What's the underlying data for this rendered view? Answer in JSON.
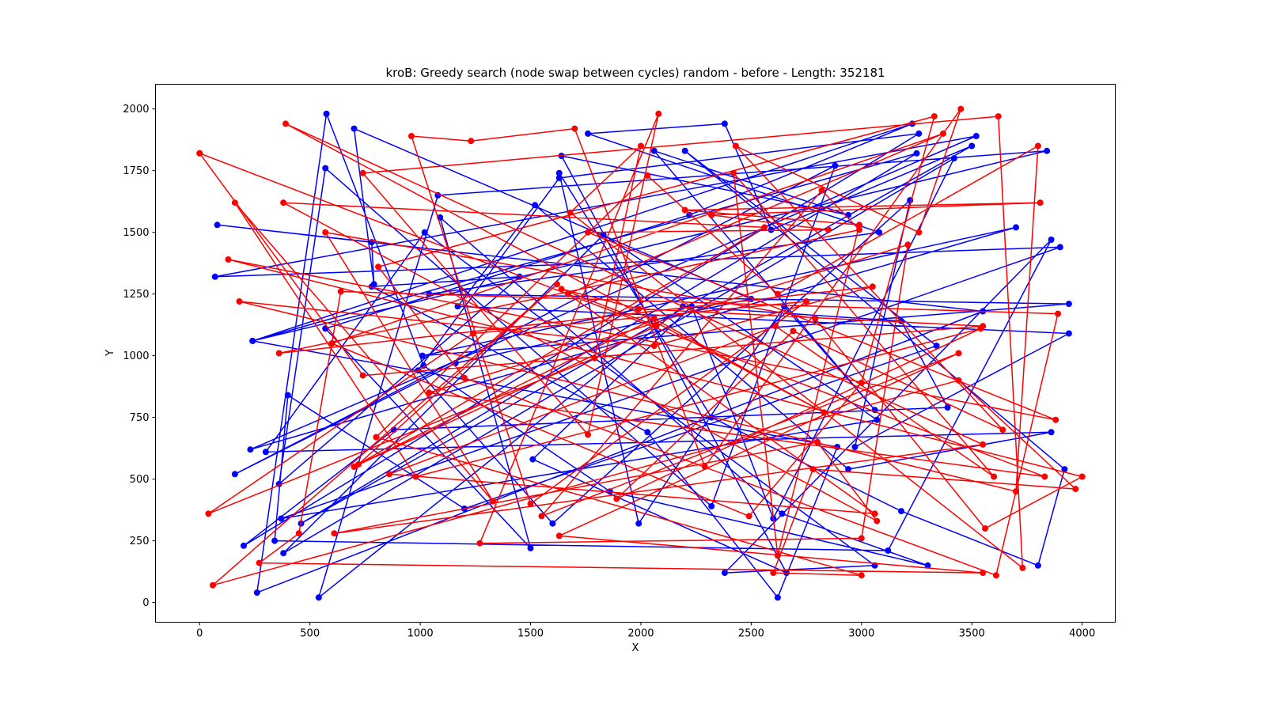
{
  "chart_data": {
    "type": "line",
    "title": "kroB: Greedy search (node swap between cycles) random - before - Length: 352181",
    "xlabel": "X",
    "ylabel": "Y",
    "xlim": [
      -200,
      4150
    ],
    "ylim": [
      -80,
      2100
    ],
    "xticks": [
      0,
      500,
      1000,
      1500,
      2000,
      2500,
      3000,
      3500,
      4000
    ],
    "yticks": [
      0,
      250,
      500,
      750,
      1000,
      1250,
      1500,
      1750,
      2000
    ],
    "grid": false,
    "series": [
      {
        "color": "#0000ff",
        "marker": "circle",
        "points": [
          [
            575,
            1980
          ],
          [
            1015,
            960
          ],
          [
            1860,
            450
          ],
          [
            3300,
            150
          ],
          [
            2640,
            360
          ],
          [
            1090,
            1560
          ],
          [
            1500,
            220
          ],
          [
            570,
            1110
          ],
          [
            2220,
            1570
          ],
          [
            3230,
            1940
          ],
          [
            240,
            1060
          ],
          [
            3250,
            1820
          ],
          [
            460,
            320
          ],
          [
            3500,
            1850
          ],
          [
            2590,
            1510
          ],
          [
            2380,
            1940
          ],
          [
            1760,
            1900
          ],
          [
            3080,
            1500
          ],
          [
            1040,
            1250
          ],
          [
            3940,
            1210
          ],
          [
            1010,
            1000
          ],
          [
            3700,
            1520
          ],
          [
            230,
            620
          ],
          [
            3520,
            1890
          ],
          [
            70,
            1320
          ],
          [
            3900,
            1440
          ],
          [
            370,
            340
          ],
          [
            3070,
            740
          ],
          [
            1830,
            1490
          ],
          [
            380,
            200
          ],
          [
            3420,
            1800
          ],
          [
            2600,
            340
          ],
          [
            2230,
            1200
          ],
          [
            1510,
            580
          ],
          [
            2660,
            120
          ],
          [
            1640,
            1810
          ],
          [
            2940,
            1570
          ],
          [
            2060,
            1830
          ],
          [
            3060,
            780
          ],
          [
            2650,
            1200
          ],
          [
            1990,
            320
          ],
          [
            1630,
            1740
          ],
          [
            2320,
            750
          ],
          [
            3180,
            370
          ],
          [
            3800,
            150
          ],
          [
            3920,
            540
          ],
          [
            2200,
            1830
          ],
          [
            3340,
            1040
          ],
          [
            1200,
            380
          ],
          [
            400,
            840
          ],
          [
            340,
            250
          ],
          [
            3120,
            210
          ],
          [
            3860,
            1470
          ],
          [
            2380,
            120
          ],
          [
            3060,
            150
          ],
          [
            1020,
            1500
          ],
          [
            300,
            610
          ],
          [
            3860,
            690
          ],
          [
            2940,
            540
          ],
          [
            1520,
            1610
          ],
          [
            1170,
            1200
          ],
          [
            3940,
            1090
          ],
          [
            2970,
            630
          ],
          [
            3220,
            1630
          ],
          [
            1600,
            320
          ],
          [
            990,
            940
          ],
          [
            1630,
            1720
          ],
          [
            3260,
            1900
          ],
          [
            200,
            230
          ],
          [
            880,
            700
          ],
          [
            3390,
            790
          ],
          [
            3180,
            1140
          ],
          [
            2190,
            1200
          ],
          [
            540,
            20
          ],
          [
            1080,
            1650
          ],
          [
            3840,
            1830
          ],
          [
            240,
            1060
          ],
          [
            2890,
            630
          ],
          [
            2620,
            20
          ],
          [
            2030,
            690
          ],
          [
            780,
            1280
          ],
          [
            1450,
            1320
          ],
          [
            360,
            480
          ],
          [
            570,
            1760
          ],
          [
            2320,
            390
          ],
          [
            2880,
            1770
          ],
          [
            160,
            520
          ],
          [
            1160,
            970
          ],
          [
            2500,
            1230
          ],
          [
            700,
            1920
          ],
          [
            790,
            1290
          ],
          [
            780,
            1460
          ],
          [
            80,
            1530
          ],
          [
            3550,
            1180
          ],
          [
            260,
            40
          ],
          [
            575,
            1980
          ]
        ]
      },
      {
        "color": "#ff0000",
        "marker": "circle",
        "points": [
          [
            0,
            1820
          ],
          [
            3830,
            510
          ],
          [
            1040,
            850
          ],
          [
            3210,
            1450
          ],
          [
            3000,
            260
          ],
          [
            1270,
            240
          ],
          [
            2080,
            1980
          ],
          [
            1760,
            680
          ],
          [
            740,
            1740
          ],
          [
            3620,
            1970
          ],
          [
            3730,
            140
          ],
          [
            1680,
            1580
          ],
          [
            2000,
            1850
          ],
          [
            1790,
            990
          ],
          [
            40,
            360
          ],
          [
            1240,
            1090
          ],
          [
            2750,
            1220
          ],
          [
            1500,
            400
          ],
          [
            960,
            1890
          ],
          [
            1230,
            1870
          ],
          [
            1700,
            1920
          ],
          [
            2290,
            550
          ],
          [
            3450,
            2000
          ],
          [
            3260,
            1500
          ],
          [
            2430,
            1850
          ],
          [
            3640,
            700
          ],
          [
            2690,
            1100
          ],
          [
            1890,
            420
          ],
          [
            3540,
            1110
          ],
          [
            980,
            510
          ],
          [
            160,
            1620
          ],
          [
            1330,
            410
          ],
          [
            570,
            1500
          ],
          [
            2790,
            1150
          ],
          [
            3560,
            300
          ],
          [
            4000,
            510
          ],
          [
            130,
            1390
          ],
          [
            3880,
            740
          ],
          [
            1760,
            1500
          ],
          [
            2850,
            1510
          ],
          [
            2320,
            1570
          ],
          [
            3810,
            1620
          ],
          [
            2200,
            1590
          ],
          [
            2990,
            1530
          ],
          [
            2620,
            190
          ],
          [
            2420,
            1740
          ],
          [
            3600,
            510
          ],
          [
            2610,
            1120
          ],
          [
            860,
            520
          ],
          [
            3060,
            360
          ],
          [
            1670,
            1250
          ],
          [
            3370,
            1900
          ],
          [
            600,
            1050
          ],
          [
            2490,
            350
          ],
          [
            3000,
            890
          ],
          [
            3330,
            1970
          ],
          [
            810,
            1360
          ],
          [
            1200,
            910
          ],
          [
            3610,
            110
          ],
          [
            3890,
            1170
          ],
          [
            640,
            1260
          ],
          [
            450,
            280
          ],
          [
            270,
            160
          ],
          [
            3550,
            120
          ],
          [
            1630,
            270
          ],
          [
            3440,
            1010
          ],
          [
            1550,
            350
          ],
          [
            2820,
            1670
          ],
          [
            2990,
            1510
          ],
          [
            360,
            1010
          ],
          [
            3050,
            1280
          ],
          [
            2060,
            1040
          ],
          [
            180,
            1220
          ],
          [
            3700,
            450
          ],
          [
            3800,
            1850
          ],
          [
            2620,
            1250
          ],
          [
            2030,
            1730
          ],
          [
            800,
            670
          ],
          [
            3000,
            110
          ],
          [
            2600,
            120
          ],
          [
            2780,
            540
          ],
          [
            3970,
            460
          ],
          [
            3440,
            900
          ],
          [
            60,
            70
          ],
          [
            1620,
            1290
          ],
          [
            720,
            560
          ],
          [
            2560,
            1520
          ],
          [
            380,
            1620
          ],
          [
            3070,
            330
          ],
          [
            2800,
            650
          ],
          [
            610,
            280
          ],
          [
            3550,
            640
          ],
          [
            390,
            1940
          ],
          [
            2830,
            770
          ],
          [
            2060,
            1150
          ],
          [
            700,
            550
          ],
          [
            2070,
            1120
          ],
          [
            1640,
            1270
          ],
          [
            1990,
            1190
          ],
          [
            3550,
            1120
          ],
          [
            740,
            920
          ],
          [
            0,
            1820
          ]
        ]
      }
    ]
  }
}
